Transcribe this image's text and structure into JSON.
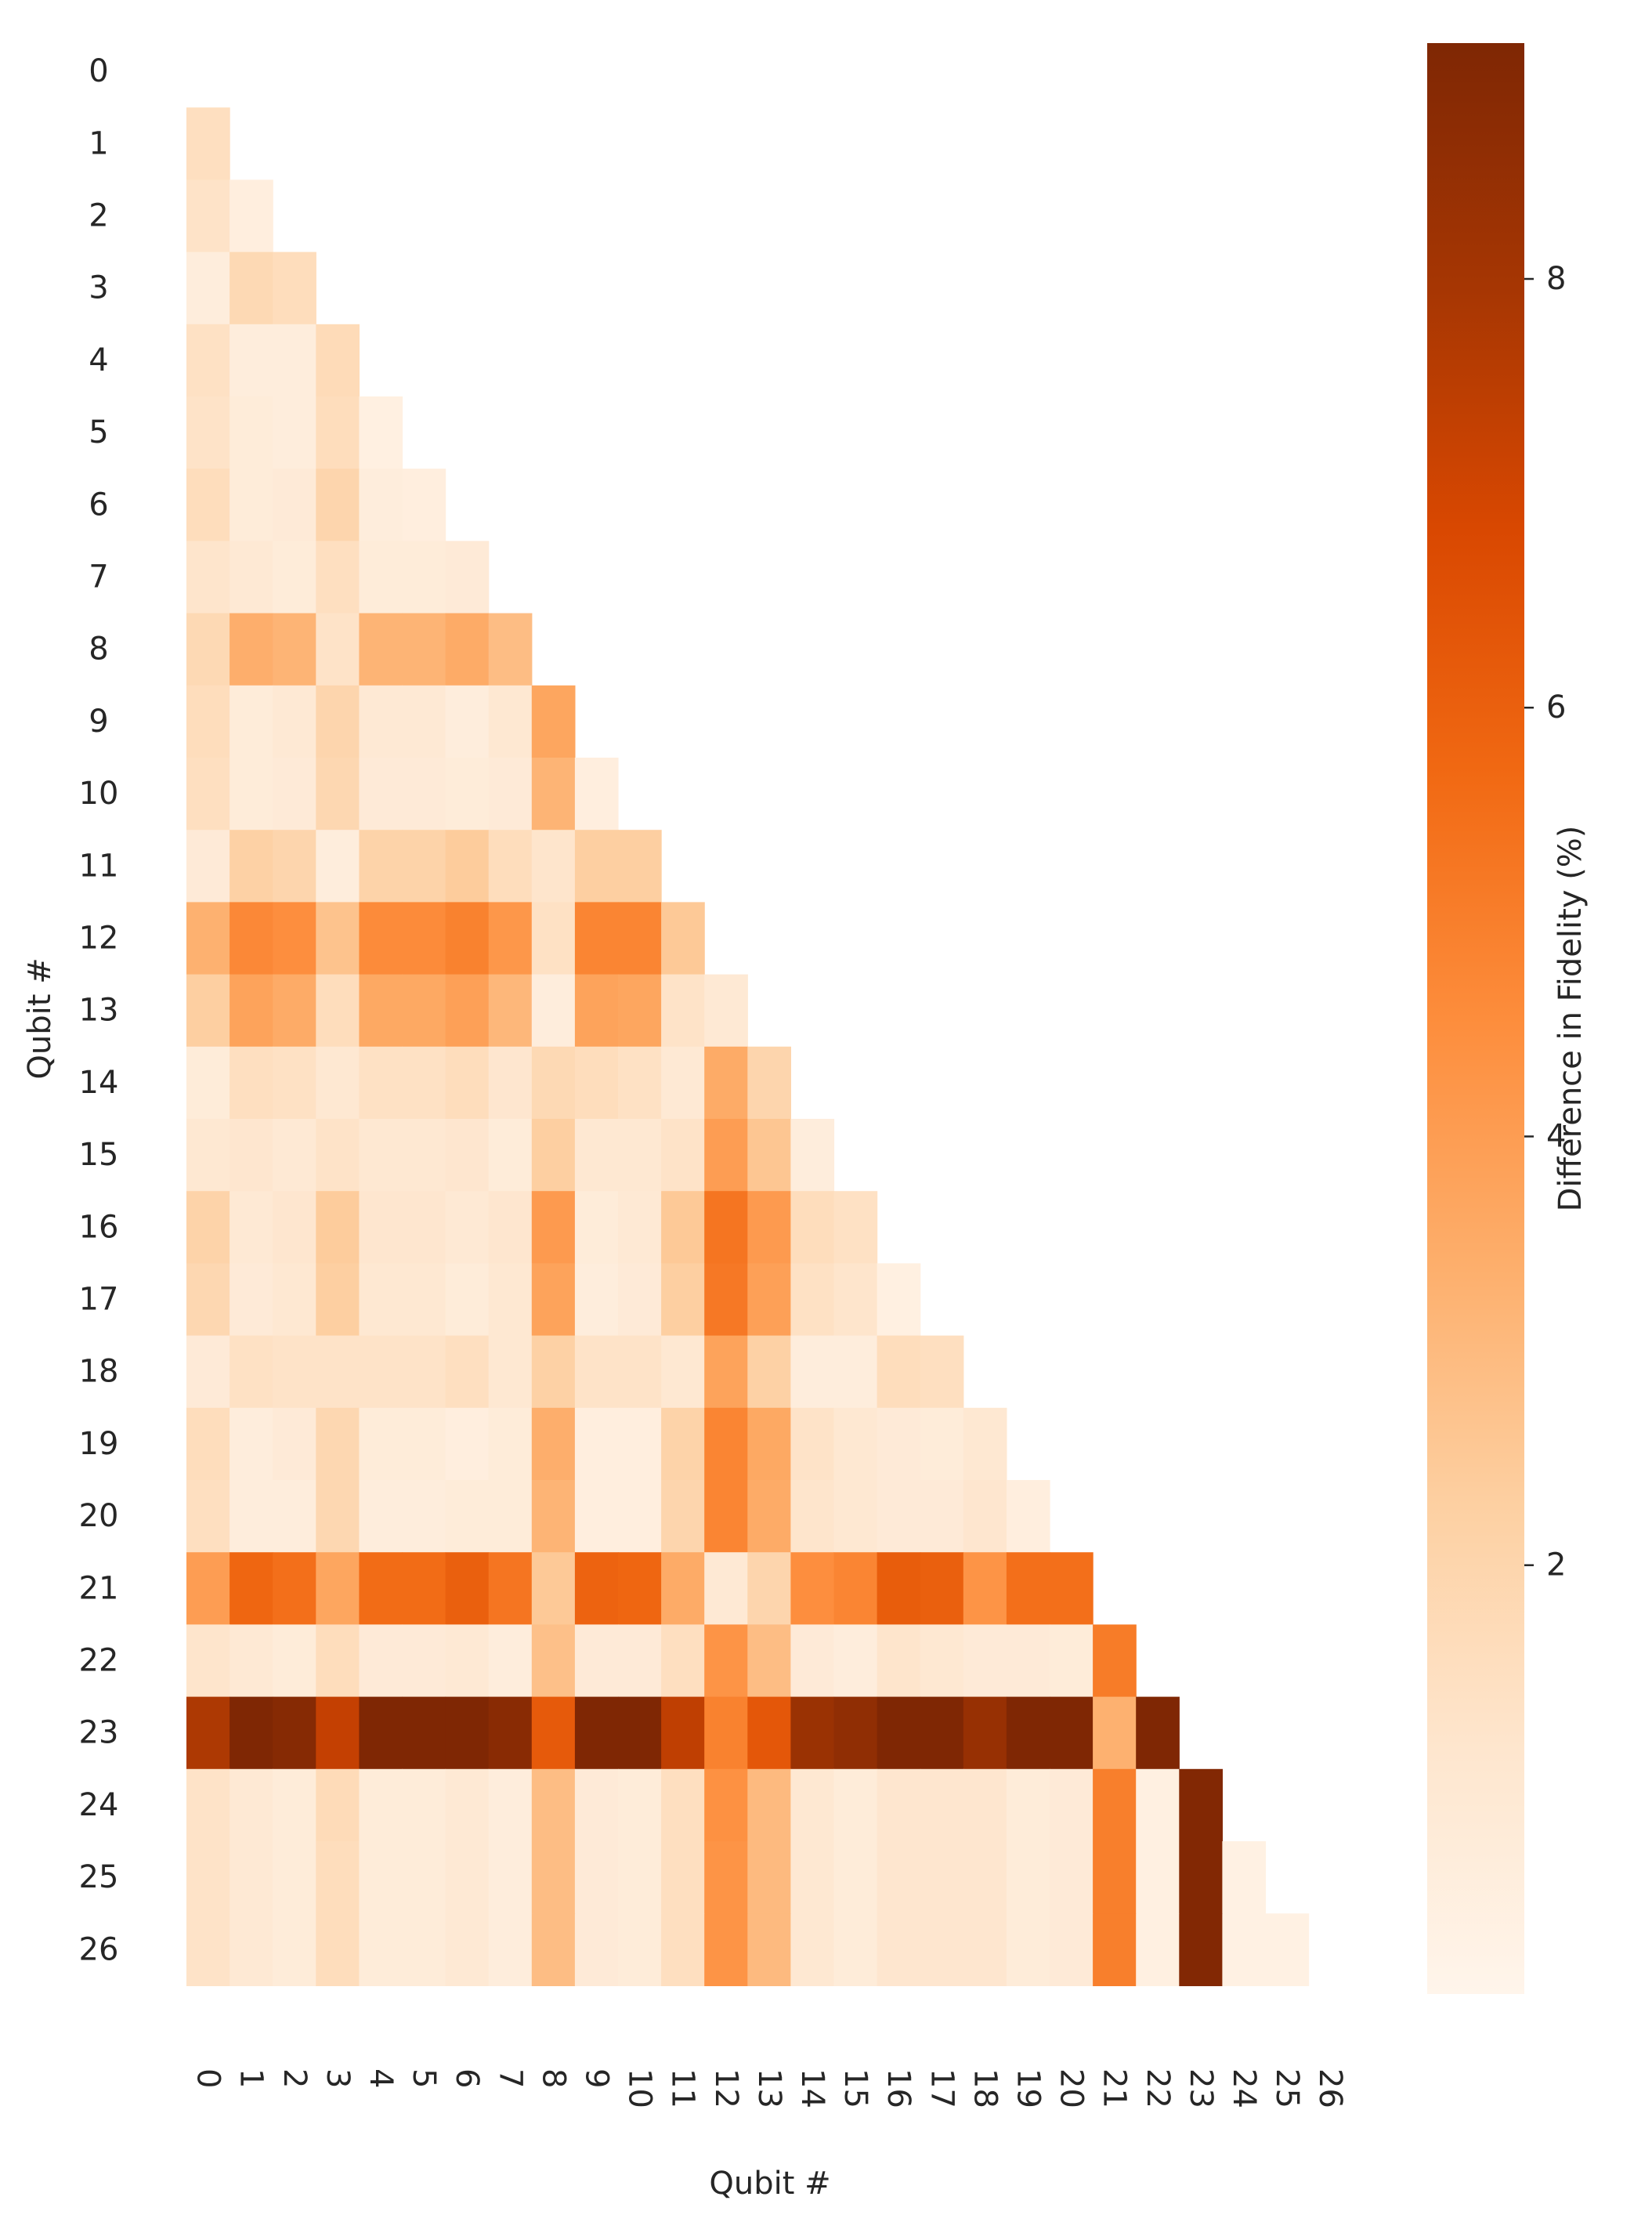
{
  "chart_data": {
    "type": "heatmap",
    "title": "",
    "xlabel": "Qubit #",
    "ylabel": "Qubit #",
    "mask": "upper-triangle-including-diagonal",
    "x_categories": [
      "0",
      "1",
      "2",
      "3",
      "4",
      "5",
      "6",
      "7",
      "8",
      "9",
      "10",
      "11",
      "12",
      "13",
      "14",
      "15",
      "16",
      "17",
      "18",
      "19",
      "20",
      "21",
      "22",
      "23",
      "24",
      "25",
      "26"
    ],
    "y_categories": [
      "0",
      "1",
      "2",
      "3",
      "4",
      "5",
      "6",
      "7",
      "8",
      "9",
      "10",
      "11",
      "12",
      "13",
      "14",
      "15",
      "16",
      "17",
      "18",
      "19",
      "20",
      "21",
      "22",
      "23",
      "24",
      "25",
      "26"
    ],
    "colorbar": {
      "label": "Difference in Fidelity (%)",
      "range": [
        0.0,
        9.1
      ],
      "ticks": [
        2,
        4,
        6,
        8
      ],
      "colormap": [
        "#fff5eb",
        "#fee6ce",
        "#fdd0a2",
        "#fdae6b",
        "#fd8d3c",
        "#f16913",
        "#d94801",
        "#a63603",
        "#7f2704"
      ]
    },
    "values": [
      [],
      [
        1.5
      ],
      [
        1.3,
        0.5
      ],
      [
        0.6,
        1.8,
        1.6
      ],
      [
        1.4,
        0.6,
        0.6,
        1.7
      ],
      [
        1.3,
        0.7,
        0.6,
        1.6,
        0.4
      ],
      [
        1.6,
        0.7,
        0.8,
        2.0,
        0.6,
        0.5
      ],
      [
        1.2,
        0.9,
        0.7,
        1.5,
        0.7,
        0.7,
        0.8
      ],
      [
        1.8,
        3.4,
        3.2,
        1.3,
        3.2,
        3.2,
        3.5,
        2.9
      ],
      [
        1.6,
        0.7,
        0.9,
        2.0,
        0.9,
        0.9,
        0.6,
        1.0,
        3.7
      ],
      [
        1.5,
        0.7,
        0.8,
        1.9,
        0.8,
        0.8,
        0.7,
        0.8,
        3.2,
        0.5
      ],
      [
        0.8,
        2.2,
        2.0,
        0.6,
        2.1,
        2.1,
        2.4,
        1.6,
        1.2,
        2.3,
        2.3
      ],
      [
        3.3,
        4.7,
        4.5,
        2.7,
        4.6,
        4.6,
        4.9,
        4.2,
        1.4,
        4.8,
        4.8,
        2.5
      ],
      [
        2.3,
        3.8,
        3.5,
        1.6,
        3.6,
        3.6,
        3.9,
        3.1,
        0.6,
        3.8,
        3.7,
        1.3,
        0.9
      ],
      [
        0.7,
        1.5,
        1.4,
        1.0,
        1.4,
        1.4,
        1.6,
        1.1,
        1.8,
        1.6,
        1.4,
        0.9,
        3.5,
        2.0
      ],
      [
        1.0,
        1.1,
        0.9,
        1.3,
        1.0,
        1.0,
        1.1,
        0.7,
        2.3,
        1.0,
        1.0,
        1.3,
        4.0,
        2.6,
        0.6
      ],
      [
        2.1,
        0.9,
        1.1,
        2.4,
        1.1,
        1.1,
        0.9,
        1.1,
        4.1,
        0.7,
        0.9,
        2.5,
        5.3,
        4.1,
        1.6,
        1.4
      ],
      [
        1.9,
        0.8,
        1.0,
        2.3,
        1.0,
        1.0,
        0.7,
        1.0,
        3.8,
        0.6,
        0.8,
        2.3,
        5.2,
        3.9,
        1.4,
        1.2,
        0.4
      ],
      [
        0.8,
        1.4,
        1.3,
        1.3,
        1.3,
        1.3,
        1.5,
        1.0,
        2.2,
        1.3,
        1.3,
        1.0,
        3.8,
        2.2,
        0.6,
        0.6,
        1.6,
        1.5
      ],
      [
        1.6,
        0.6,
        0.8,
        1.9,
        0.7,
        0.7,
        0.5,
        0.7,
        3.4,
        0.5,
        0.5,
        2.1,
        4.8,
        3.6,
        1.3,
        1.0,
        0.8,
        0.7,
        1.0
      ],
      [
        1.5,
        0.6,
        0.6,
        1.9,
        0.6,
        0.6,
        0.7,
        0.7,
        3.2,
        0.5,
        0.5,
        2.0,
        4.8,
        3.5,
        1.2,
        1.0,
        0.8,
        0.8,
        1.1,
        0.5
      ],
      [
        4.0,
        5.8,
        5.5,
        3.7,
        5.6,
        5.6,
        6.0,
        5.3,
        2.5,
        5.9,
        5.8,
        3.5,
        0.9,
        2.0,
        4.5,
        4.8,
        6.1,
        6.0,
        4.3,
        5.5,
        5.5
      ],
      [
        1.2,
        0.9,
        0.7,
        1.6,
        0.8,
        0.8,
        0.9,
        0.6,
        2.8,
        0.8,
        0.8,
        1.5,
        4.3,
        2.9,
        0.8,
        0.6,
        1.2,
        1.0,
        0.8,
        0.8,
        0.7,
        5.1
      ],
      [
        7.8,
        9.1,
        8.9,
        7.3,
        9.1,
        9.1,
        9.1,
        8.8,
        6.2,
        9.1,
        9.1,
        7.4,
        4.9,
        6.3,
        8.3,
        8.6,
        9.1,
        9.1,
        8.4,
        9.1,
        9.1,
        3.3,
        9.1
      ],
      [
        1.3,
        0.9,
        0.7,
        1.7,
        0.7,
        0.7,
        0.9,
        0.6,
        2.9,
        0.8,
        0.7,
        1.5,
        4.4,
        3.0,
        1.0,
        0.7,
        1.1,
        1.1,
        1.1,
        0.7,
        0.8,
        5.0,
        0.4,
        9.0
      ],
      [
        1.3,
        0.9,
        0.7,
        1.6,
        0.7,
        0.7,
        0.9,
        0.6,
        2.9,
        0.8,
        0.7,
        1.5,
        4.3,
        3.0,
        1.0,
        0.7,
        1.1,
        1.1,
        1.1,
        0.7,
        0.8,
        5.0,
        0.4,
        9.0,
        0.3
      ],
      [
        1.3,
        0.9,
        0.7,
        1.6,
        0.7,
        0.7,
        0.9,
        0.6,
        2.9,
        0.8,
        0.7,
        1.5,
        4.3,
        3.0,
        1.0,
        0.7,
        1.1,
        1.1,
        1.1,
        0.7,
        0.8,
        5.0,
        0.4,
        9.0,
        0.3,
        0.3
      ]
    ]
  }
}
